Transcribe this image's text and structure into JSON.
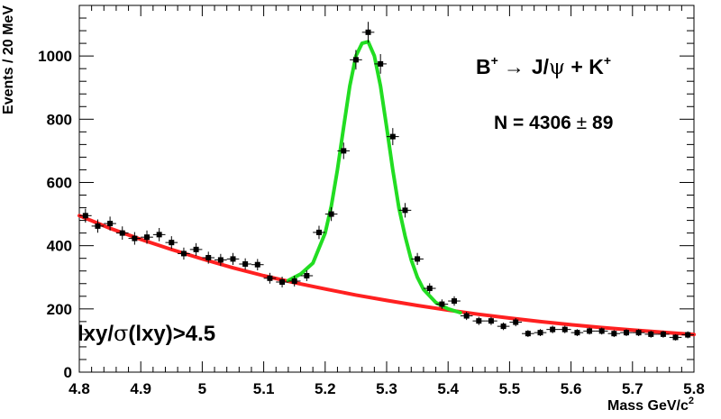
{
  "chart_data": {
    "type": "scatter",
    "title": "",
    "xlabel": "Mass GeV/c",
    "xlabel_sup": "2",
    "ylabel": "Events / 20 MeV",
    "xlim": [
      4.8,
      5.8
    ],
    "ylim": [
      0,
      1160
    ],
    "grid": false,
    "x_ticks": [
      4.8,
      4.9,
      5,
      5.1,
      5.2,
      5.3,
      5.4,
      5.5,
      5.6,
      5.7,
      5.8
    ],
    "x_tick_labels": [
      "4.8",
      "4.9",
      "5",
      "5.1",
      "5.2",
      "5.3",
      "5.4",
      "5.5",
      "5.6",
      "5.7",
      "5.8"
    ],
    "y_ticks": [
      0,
      200,
      400,
      600,
      800,
      1000
    ],
    "y_tick_labels": [
      "0",
      "200",
      "400",
      "600",
      "800",
      "1000"
    ],
    "series": [
      {
        "kind": "points_with_errors",
        "color": "#000000",
        "x": [
          4.81,
          4.83,
          4.85,
          4.87,
          4.89,
          4.91,
          4.93,
          4.95,
          4.97,
          4.99,
          5.01,
          5.03,
          5.05,
          5.07,
          5.09,
          5.11,
          5.13,
          5.15,
          5.17,
          5.19,
          5.21,
          5.23,
          5.25,
          5.27,
          5.29,
          5.31,
          5.33,
          5.35,
          5.37,
          5.39,
          5.41,
          5.43,
          5.45,
          5.47,
          5.49,
          5.51,
          5.53,
          5.55,
          5.57,
          5.59,
          5.61,
          5.63,
          5.65,
          5.67,
          5.69,
          5.71,
          5.73,
          5.75,
          5.77,
          5.79
        ],
        "y": [
          495,
          462,
          470,
          440,
          423,
          427,
          435,
          410,
          375,
          388,
          362,
          355,
          358,
          342,
          340,
          297,
          285,
          288,
          305,
          442,
          500,
          700,
          988,
          1075,
          975,
          745,
          512,
          358,
          265,
          215,
          225,
          178,
          162,
          162,
          145,
          158,
          122,
          125,
          135,
          135,
          125,
          130,
          130,
          122,
          125,
          125,
          120,
          120,
          110,
          118
        ],
        "y_err": [
          22,
          21,
          22,
          21,
          20,
          21,
          21,
          20,
          19,
          20,
          19,
          19,
          19,
          18,
          18,
          17,
          17,
          17,
          17,
          21,
          22,
          26,
          31,
          33,
          31,
          27,
          23,
          19,
          16,
          15,
          15,
          13,
          13,
          13,
          12,
          13,
          11,
          11,
          12,
          12,
          11,
          11,
          11,
          11,
          11,
          11,
          11,
          11,
          10,
          11
        ]
      },
      {
        "kind": "curve",
        "role": "background fit",
        "color": "#ff2020",
        "x": [
          4.8,
          4.85,
          4.9,
          4.95,
          5.0,
          5.05,
          5.1,
          5.15,
          5.2,
          5.25,
          5.3,
          5.35,
          5.4,
          5.45,
          5.5,
          5.55,
          5.6,
          5.65,
          5.7,
          5.75,
          5.8
        ],
        "y": [
          495,
          455,
          420,
          388,
          358,
          330,
          305,
          283,
          263,
          244,
          227,
          211,
          196,
          183,
          171,
          160,
          150,
          141,
          133,
          126,
          119
        ]
      },
      {
        "kind": "curve",
        "role": "signal + background fit",
        "color": "#22dd22",
        "x": [
          5.14,
          5.16,
          5.18,
          5.2,
          5.21,
          5.22,
          5.23,
          5.24,
          5.25,
          5.26,
          5.27,
          5.28,
          5.29,
          5.3,
          5.31,
          5.32,
          5.33,
          5.34,
          5.35,
          5.36,
          5.38,
          5.4,
          5.42
        ],
        "y": [
          290,
          310,
          345,
          440,
          525,
          640,
          775,
          905,
          1000,
          1040,
          1045,
          1000,
          905,
          775,
          640,
          520,
          430,
          355,
          300,
          262,
          220,
          200,
          188
        ]
      }
    ],
    "annotations": {
      "decay": {
        "lhs": "B",
        "lhs_sup": "+",
        "arrow": "→",
        "rhs1": "J/",
        "psi": "ψ",
        "plus": " + K",
        "rhs_sup": "+"
      },
      "yield": {
        "text": "N = 4306 ",
        "pm": "±",
        "num": " 89"
      },
      "cut": {
        "pre": "lxy/",
        "sigma": "σ",
        "post": "(lxy)>4.5"
      }
    }
  }
}
